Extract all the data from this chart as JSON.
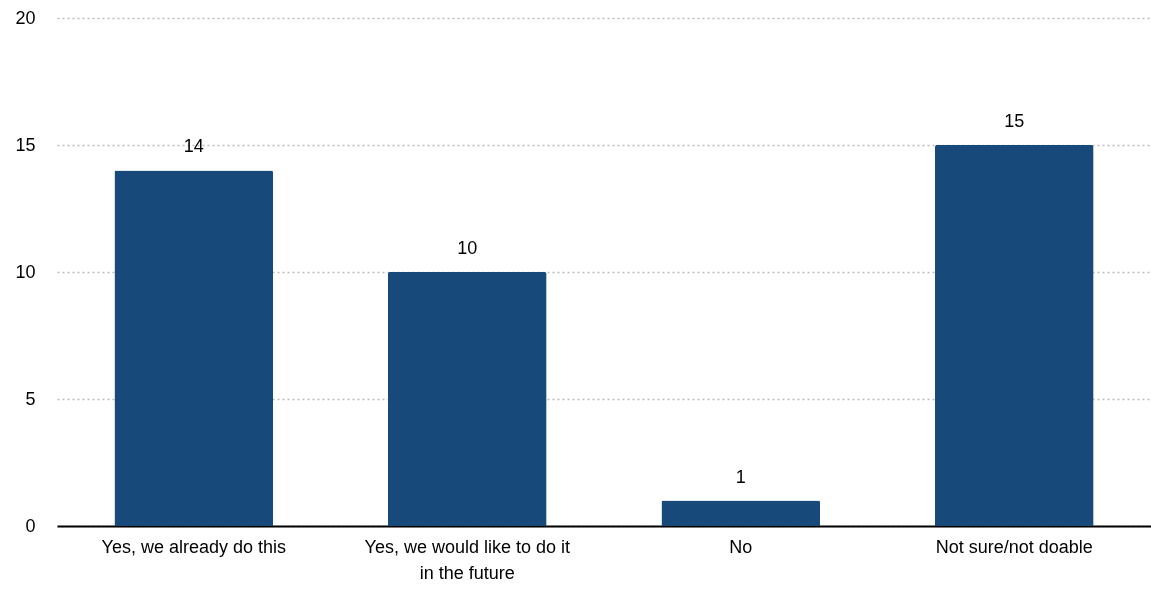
{
  "chart_data": {
    "type": "bar",
    "categories": [
      "Yes, we already do this",
      "Yes, we would like to do it in the future",
      "No",
      "Not sure/not doable"
    ],
    "values": [
      14,
      10,
      1,
      15
    ],
    "color": "#17497a",
    "ylim": [
      0,
      20
    ],
    "yticks": [
      0,
      5,
      10,
      15,
      20
    ],
    "grid": "y",
    "data_labels": true
  }
}
